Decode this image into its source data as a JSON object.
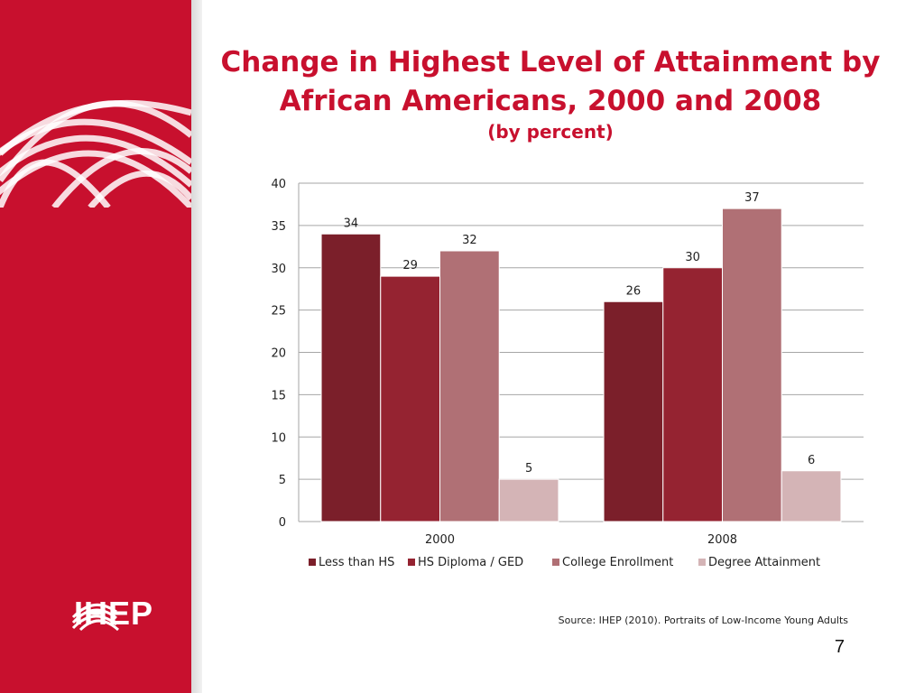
{
  "slide": {
    "title_line1": "Change in Highest Level of Attainment by",
    "title_line2": "African Americans, 2000 and 2008",
    "subtitle": "(by percent)",
    "source": "Source:  IHEP (2010). Portraits of Low-Income Young Adults",
    "page_number": "7",
    "logo_text": "IHEP",
    "colors": {
      "brand_red": "#c8102e"
    }
  },
  "chart_data": {
    "type": "bar",
    "categories": [
      "2000",
      "2008"
    ],
    "series": [
      {
        "name": "Less than HS",
        "values": [
          34,
          26
        ],
        "color": "#7b1f2a"
      },
      {
        "name": "HS Diploma / GED",
        "values": [
          29,
          30
        ],
        "color": "#952331"
      },
      {
        "name": "College Enrollment",
        "values": [
          32,
          37
        ],
        "color": "#b07075"
      },
      {
        "name": "Degree Attainment",
        "values": [
          5,
          6
        ],
        "color": "#d4b4b6"
      }
    ],
    "ylim": [
      0,
      40
    ],
    "yticks": [
      0,
      5,
      10,
      15,
      20,
      25,
      30,
      35,
      40
    ],
    "grid": true,
    "legend": "bottom",
    "data_labels": true,
    "title": "",
    "xlabel": "",
    "ylabel": ""
  }
}
